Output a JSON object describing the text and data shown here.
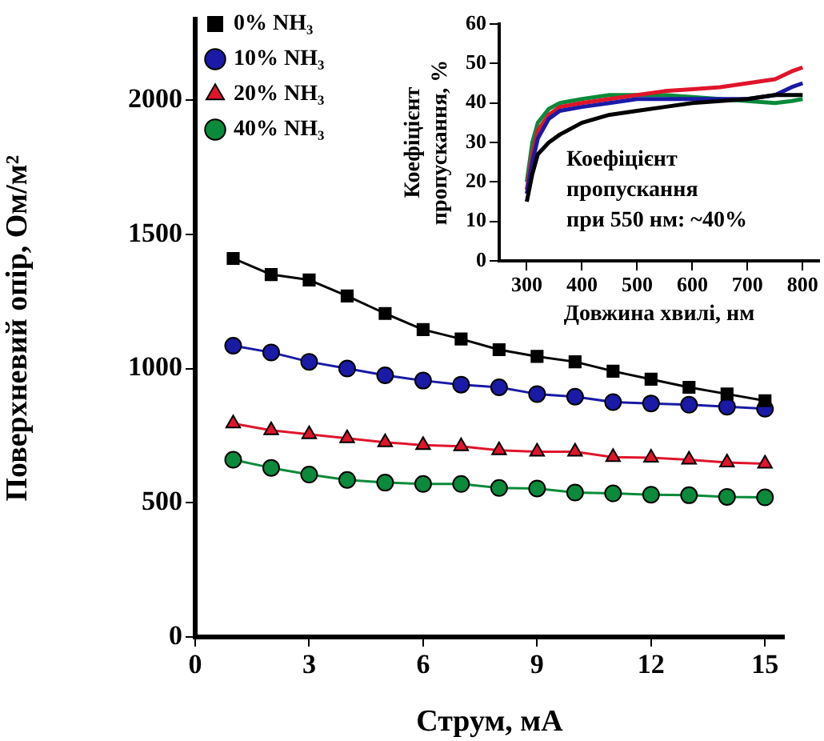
{
  "chart_data": [
    {
      "type": "line",
      "xlabel": "Струм, мА",
      "ylabel": "Поверхневий опір, Ом/м²",
      "x": [
        1,
        2,
        3,
        4,
        5,
        6,
        7,
        8,
        9,
        10,
        11,
        12,
        13,
        14,
        15
      ],
      "xlim": [
        0,
        15.5
      ],
      "xticks": [
        0,
        3,
        6,
        9,
        12,
        15
      ],
      "ylim": [
        0,
        2300
      ],
      "yticks": [
        0,
        500,
        1000,
        1500,
        2000
      ],
      "grid": false,
      "legend": "top left",
      "series": [
        {
          "name": "0% NH₃",
          "color": "#000000",
          "marker": "square",
          "values": [
            1410,
            1350,
            1330,
            1270,
            1205,
            1145,
            1110,
            1070,
            1045,
            1025,
            990,
            960,
            930,
            905,
            880
          ]
        },
        {
          "name": "10% NH₃",
          "color": "#1a1aa6",
          "marker": "circle",
          "values": [
            1085,
            1060,
            1025,
            1000,
            975,
            955,
            940,
            930,
            905,
            895,
            875,
            870,
            865,
            858,
            850
          ]
        },
        {
          "name": "20% NH₃",
          "color": "#e0142a",
          "marker": "triangle",
          "values": [
            795,
            770,
            755,
            740,
            725,
            715,
            710,
            695,
            690,
            690,
            670,
            668,
            660,
            650,
            645
          ]
        },
        {
          "name": "40% NH₃",
          "color": "#0a8a3a",
          "marker": "circle",
          "values": [
            660,
            630,
            605,
            585,
            575,
            570,
            570,
            555,
            553,
            538,
            535,
            530,
            528,
            522,
            520
          ]
        }
      ]
    },
    {
      "type": "line",
      "xlabel": "Довжина хвилі, нм",
      "ylabel": "Коефіцієнт\nпропускання, %",
      "x": [
        300,
        310,
        320,
        340,
        360,
        400,
        450,
        500,
        550,
        600,
        650,
        700,
        750,
        780,
        800
      ],
      "xlim": [
        250,
        830
      ],
      "xticks": [
        300,
        400,
        500,
        600,
        700,
        800
      ],
      "ylim": [
        0,
        60
      ],
      "yticks": [
        0,
        10,
        20,
        30,
        40,
        50,
        60
      ],
      "grid": false,
      "legend": false,
      "marker": "none",
      "annotations": [
        "Коефіцієнт\nпропускання\nпри 550 нм: ~40%"
      ],
      "series": [
        {
          "color": "#000000",
          "values": [
            15,
            22,
            27,
            30,
            32,
            35,
            37,
            38,
            39,
            40,
            40.5,
            41,
            42,
            42,
            42
          ]
        },
        {
          "color": "#1a1aa6",
          "values": [
            17,
            25,
            31,
            36,
            38,
            39,
            40,
            41,
            41,
            41,
            41,
            41,
            42,
            44,
            45
          ]
        },
        {
          "color": "#e0142a",
          "values": [
            18,
            27,
            33,
            37,
            39,
            40,
            41,
            42,
            43,
            43.5,
            44,
            45,
            46,
            48,
            49
          ]
        },
        {
          "color": "#0a8a3a",
          "values": [
            20,
            30,
            35,
            38.5,
            40,
            41,
            42,
            42,
            42,
            41.5,
            41,
            40.5,
            40,
            40.5,
            41
          ]
        }
      ]
    }
  ]
}
